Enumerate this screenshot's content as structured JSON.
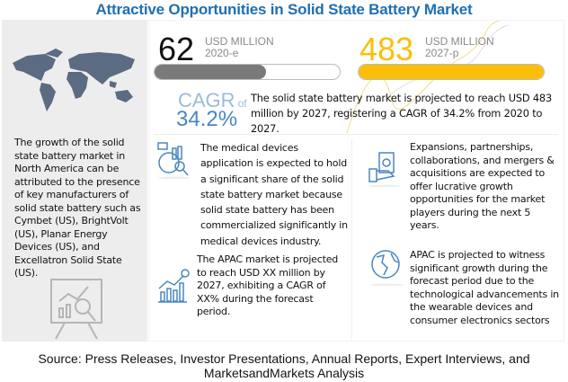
{
  "title": "Attractive Opportunities in Solid State Battery Market",
  "left_panel": {
    "text": "The growth of the solid state battery market in North America can be attributed to the presence of key manufacturers of solid state battery such as Cymbet (US), BrightVolt (US), Planar Energy Devices (US), and Excellatron Solid State (US)."
  },
  "stat_2020": {
    "value": "62",
    "unit": "USD MILLION",
    "year": "2020-e",
    "bar_fill_fraction": 0.6,
    "color": "#7a7a7a"
  },
  "stat_2027": {
    "value": "483",
    "unit": "USD MILLION",
    "year": "2027-p",
    "bar_fill_fraction": 1.0,
    "color": "#fbbf0a"
  },
  "cagr": {
    "label": "CAGR",
    "of": "of",
    "value": "34.2%",
    "text": "The solid state battery market is projected to reach USD 483 million by 2027, registering a CAGR of 34.2% from 2020 to 2027."
  },
  "insights": [
    {
      "icon": "medical-analytics-icon",
      "text": "The medical devices application is expected to hold a significant share of the solid state battery market because solid state battery has been commercialized significantly in medical devices industry."
    },
    {
      "icon": "growth-chart-icon",
      "text": "The APAC market is projected to reach USD XX million by 2027, exhibiting a CAGR of XX% during the forecast period."
    },
    {
      "icon": "money-hand-icon",
      "text": "Expansions, partnerships, collaborations, and mergers & acquisitions are expected to offer lucrative growth opportunities for the market players during the next 5 years."
    },
    {
      "icon": "globe-icon",
      "text": "APAC is projected to witness significant growth during the forecast period due to the technological advancements in the wearable devices and consumer electronics sectors"
    }
  ],
  "source": "Source: Press Releases, Investor Presentations, Annual Reports, Expert Interviews, and MarketsandMarkets Analysis",
  "colors": {
    "title": "#1f6fb2",
    "cagr": "#4a86c0",
    "accent_yellow": "#fbbf0a",
    "icon_blue": "#4a86c0"
  }
}
